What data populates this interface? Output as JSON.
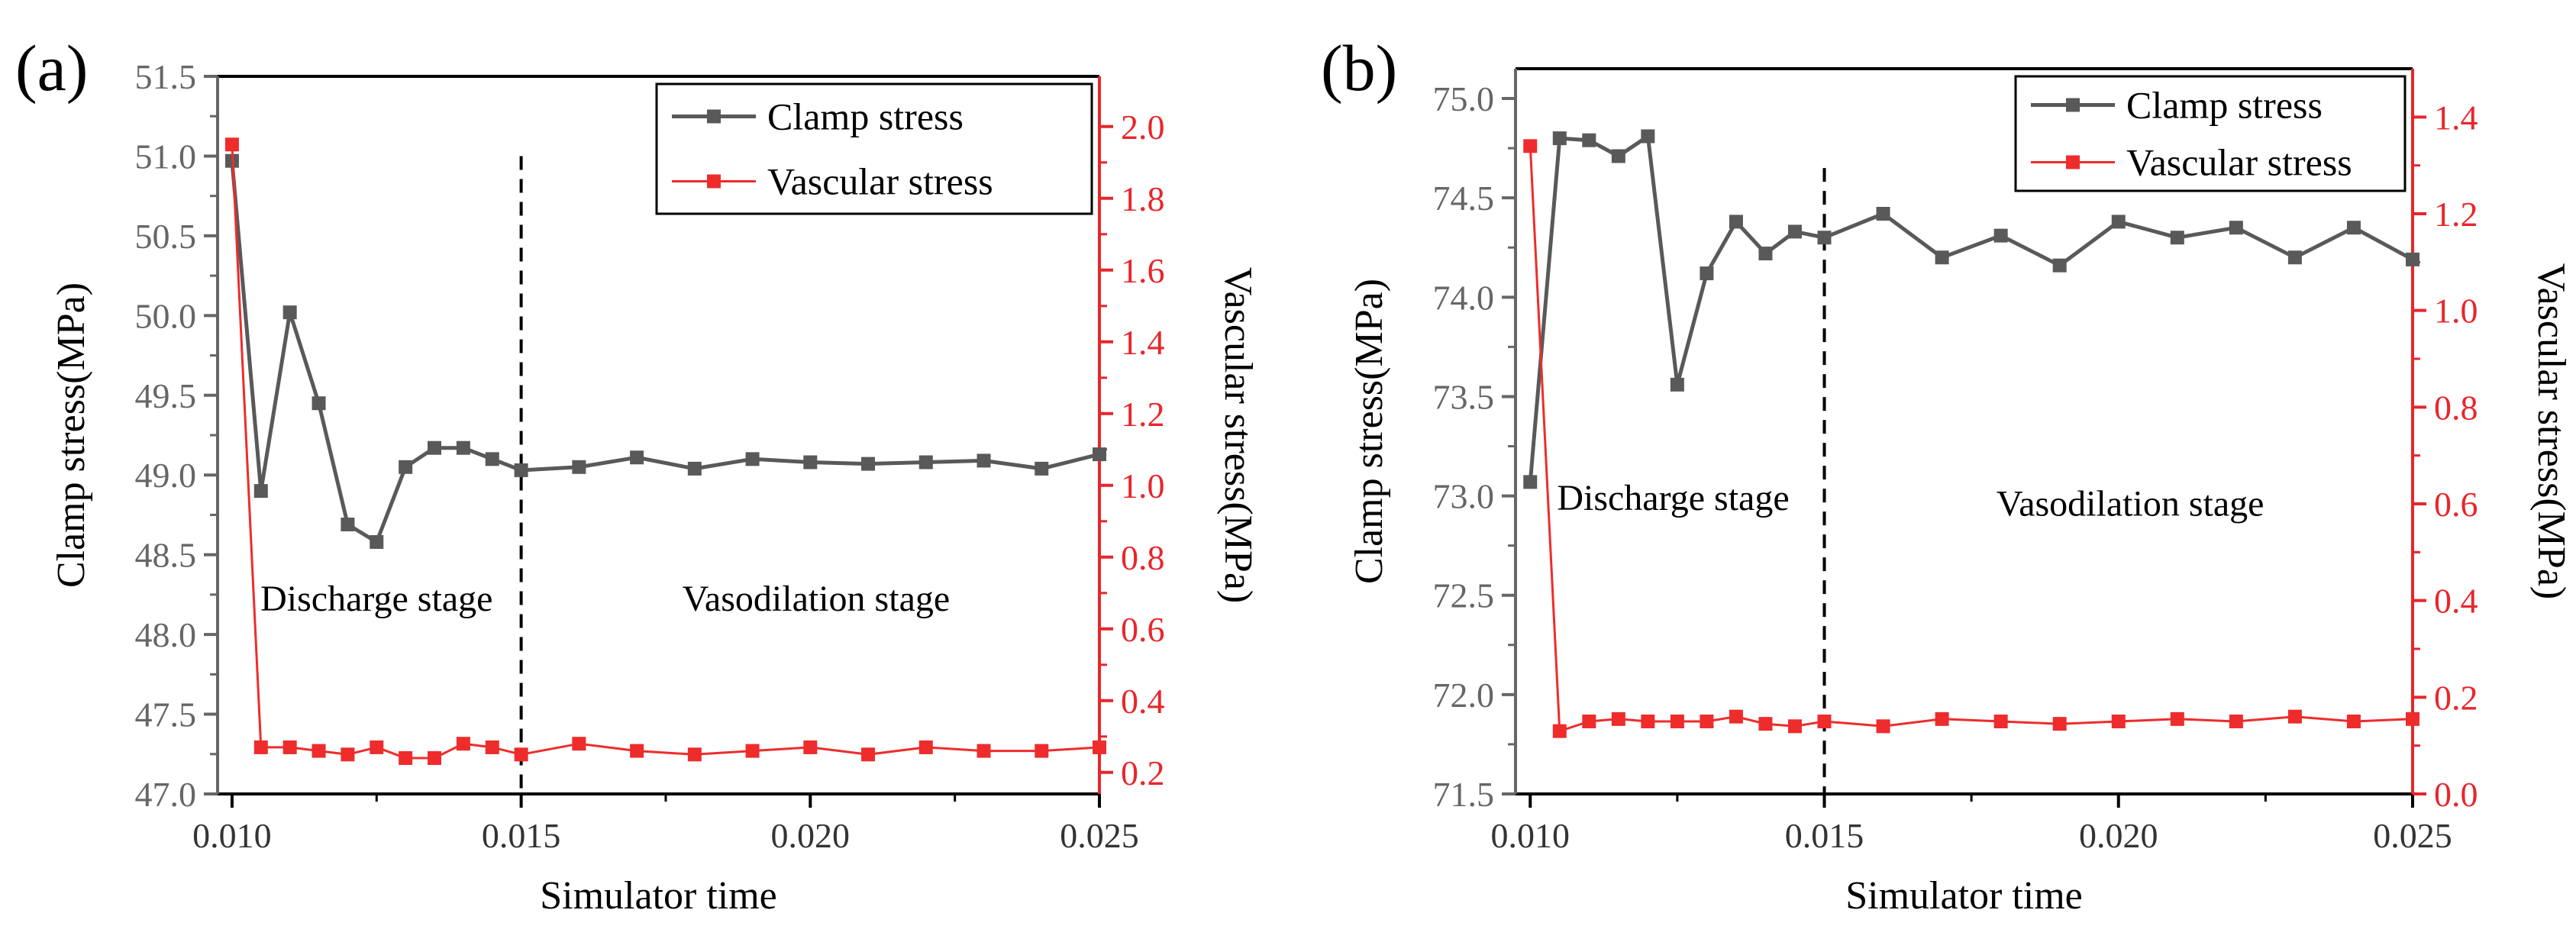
{
  "figure": {
    "panel_labels": [
      "(a)",
      "(b)"
    ]
  },
  "colors": {
    "clamp": "#595959",
    "vascular": "#ee2c2c",
    "axis_left": "#666666",
    "axis_right": "#e8262b",
    "dashed": "#000000"
  },
  "chart_data": [
    {
      "type": "line",
      "panel": "(a)",
      "xlabel": "Simulator time",
      "ylabel_left": "Clamp stress(MPa)",
      "ylabel_right": "Vascular stress(MPa)",
      "xlim": [
        0.00975,
        0.025
      ],
      "ylim_left": [
        47.0,
        51.5
      ],
      "ylim_right": [
        0.14,
        2.14
      ],
      "xticks": [
        0.01,
        0.015,
        0.02,
        0.025
      ],
      "xtick_labels": [
        "0.010",
        "0.015",
        "0.020",
        "0.025"
      ],
      "yticks_left": [
        47.0,
        47.5,
        48.0,
        48.5,
        49.0,
        49.5,
        50.0,
        50.5,
        51.0,
        51.5
      ],
      "yticks_left_labels": [
        "47.0",
        "47.5",
        "48.0",
        "48.5",
        "49.0",
        "49.5",
        "50.0",
        "50.5",
        "51.0",
        "51.5"
      ],
      "yticks_right": [
        0.2,
        0.4,
        0.6,
        0.8,
        1.0,
        1.2,
        1.4,
        1.6,
        1.8,
        2.0
      ],
      "yticks_right_labels": [
        "0.2",
        "0.4",
        "0.6",
        "0.8",
        "1.0",
        "1.2",
        "1.4",
        "1.6",
        "1.8",
        "2.0"
      ],
      "divider_x": 0.015,
      "divider_top": 51.0,
      "legend_position": "top-right",
      "annotations": [
        {
          "text": "Discharge stage",
          "x": 0.0125,
          "y": 48.15
        },
        {
          "text": "Vasodilation stage",
          "x": 0.0201,
          "y": 48.15
        }
      ],
      "series": [
        {
          "name": "Clamp stress",
          "axis": "left",
          "x": [
            0.01,
            0.0105,
            0.011,
            0.0115,
            0.012,
            0.0125,
            0.013,
            0.0135,
            0.014,
            0.0145,
            0.015,
            0.016,
            0.017,
            0.018,
            0.019,
            0.02,
            0.021,
            0.022,
            0.023,
            0.024,
            0.025
          ],
          "values": [
            50.97,
            48.9,
            50.02,
            49.45,
            48.69,
            48.58,
            49.05,
            49.17,
            49.17,
            49.1,
            49.03,
            49.05,
            49.11,
            49.04,
            49.1,
            49.08,
            49.07,
            49.08,
            49.09,
            49.04,
            49.13
          ]
        },
        {
          "name": "Vascular stress",
          "axis": "right",
          "x": [
            0.01,
            0.0105,
            0.011,
            0.0115,
            0.012,
            0.0125,
            0.013,
            0.0135,
            0.014,
            0.0145,
            0.015,
            0.016,
            0.017,
            0.018,
            0.019,
            0.02,
            0.021,
            0.022,
            0.023,
            0.024,
            0.025
          ],
          "values": [
            1.95,
            0.27,
            0.27,
            0.26,
            0.25,
            0.27,
            0.24,
            0.24,
            0.28,
            0.27,
            0.25,
            0.28,
            0.26,
            0.25,
            0.26,
            0.27,
            0.25,
            0.27,
            0.26,
            0.26,
            0.27
          ]
        }
      ]
    },
    {
      "type": "line",
      "panel": "(b)",
      "xlabel": "Simulator time",
      "ylabel_left": "Clamp stress(MPa)",
      "ylabel_right": "Vascular stress(MPa)",
      "xlim": [
        0.00975,
        0.025
      ],
      "ylim_left": [
        71.5,
        75.15
      ],
      "ylim_right": [
        0.0,
        1.5
      ],
      "xticks": [
        0.01,
        0.015,
        0.02,
        0.025
      ],
      "xtick_labels": [
        "0.010",
        "0.015",
        "0.020",
        "0.025"
      ],
      "yticks_left": [
        71.5,
        72.0,
        72.5,
        73.0,
        73.5,
        74.0,
        74.5,
        75.0
      ],
      "yticks_left_labels": [
        "71.5",
        "72.0",
        "72.5",
        "73.0",
        "73.5",
        "74.0",
        "74.5",
        "75.0"
      ],
      "yticks_right": [
        0.0,
        0.2,
        0.4,
        0.6,
        0.8,
        1.0,
        1.2,
        1.4
      ],
      "yticks_right_labels": [
        "0.0",
        "0.2",
        "0.4",
        "0.6",
        "0.8",
        "1.0",
        "1.2",
        "1.4"
      ],
      "divider_x": 0.015,
      "divider_top": 74.65,
      "legend_position": "top-right",
      "annotations": [
        {
          "text": "Discharge stage",
          "x": 0.01243,
          "y": 72.93
        },
        {
          "text": "Vasodilation stage",
          "x": 0.0202,
          "y": 72.9
        }
      ],
      "series": [
        {
          "name": "Clamp stress",
          "axis": "left",
          "x": [
            0.01,
            0.0105,
            0.011,
            0.0115,
            0.012,
            0.0125,
            0.013,
            0.0135,
            0.014,
            0.0145,
            0.015,
            0.016,
            0.017,
            0.018,
            0.019,
            0.02,
            0.021,
            0.022,
            0.023,
            0.024,
            0.025
          ],
          "values": [
            73.07,
            74.8,
            74.79,
            74.71,
            74.81,
            73.56,
            74.12,
            74.38,
            74.22,
            74.33,
            74.3,
            74.42,
            74.2,
            74.31,
            74.16,
            74.38,
            74.3,
            74.35,
            74.2,
            74.35,
            74.19
          ]
        },
        {
          "name": "Vascular stress",
          "axis": "right",
          "x": [
            0.01,
            0.0105,
            0.011,
            0.0115,
            0.012,
            0.0125,
            0.013,
            0.0135,
            0.014,
            0.0145,
            0.015,
            0.016,
            0.017,
            0.018,
            0.019,
            0.02,
            0.021,
            0.022,
            0.023,
            0.024,
            0.025
          ],
          "values": [
            1.34,
            0.13,
            0.15,
            0.155,
            0.15,
            0.15,
            0.15,
            0.16,
            0.145,
            0.14,
            0.15,
            0.14,
            0.155,
            0.15,
            0.145,
            0.15,
            0.155,
            0.15,
            0.16,
            0.15,
            0.155
          ]
        }
      ]
    }
  ]
}
